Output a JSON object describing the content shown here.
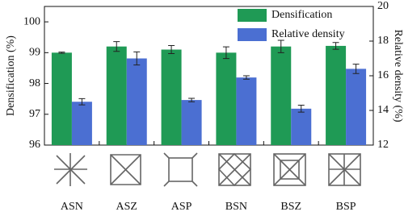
{
  "chart_data": {
    "type": "bar",
    "categories": [
      "ASN",
      "ASZ",
      "ASP",
      "BSN",
      "BSZ",
      "BSP"
    ],
    "ylabel": "Densification (%)",
    "y2label": "Relative density (%)",
    "ylim": [
      96,
      100.5
    ],
    "yticks": [
      96,
      97,
      98,
      99,
      100
    ],
    "y2lim": [
      12,
      20
    ],
    "y2ticks": [
      12,
      14,
      16,
      18,
      20
    ],
    "legend": "upper right",
    "series": [
      {
        "name": "Densification",
        "color": "#1f9a55",
        "values": [
          99.0,
          99.2,
          99.1,
          99.0,
          99.2,
          99.22
        ],
        "errors": [
          0.02,
          0.16,
          0.13,
          0.19,
          0.2,
          0.11
        ]
      },
      {
        "name": "Relative density",
        "color": "#4b6fd2",
        "axis": "y2",
        "values": [
          14.5,
          17.0,
          14.6,
          15.9,
          14.1,
          16.4
        ],
        "errors": [
          0.18,
          0.38,
          0.1,
          0.1,
          0.2,
          0.27
        ]
      }
    ]
  }
}
